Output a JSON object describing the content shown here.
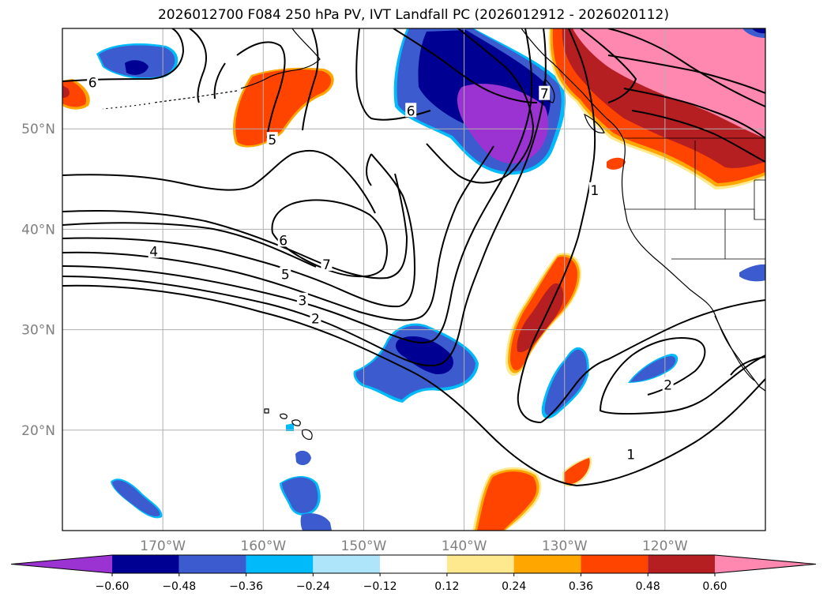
{
  "title": "2026012700 F084 250 hPa PV, IVT Landfall PC (2026012912 - 2026020112)",
  "map": {
    "projection": "PlateCarree",
    "extent": {
      "lon_min": -180,
      "lon_max": -110,
      "lat_min": 10,
      "lat_max": 60
    },
    "gridlines": true,
    "lon_ticks": [
      {
        "lon": -170,
        "label": "170°W"
      },
      {
        "lon": -160,
        "label": "160°W"
      },
      {
        "lon": -150,
        "label": "150°W"
      },
      {
        "lon": -140,
        "label": "140°W"
      },
      {
        "lon": -130,
        "label": "130°W"
      },
      {
        "lon": -120,
        "label": "120°W"
      }
    ],
    "lat_ticks": [
      {
        "lat": 20,
        "label": "20°N"
      },
      {
        "lat": 30,
        "label": "30°N"
      },
      {
        "lat": 40,
        "label": "40°N"
      },
      {
        "lat": 50,
        "label": "50°N"
      }
    ],
    "contour_labels": [
      {
        "text": "6",
        "lon": -177.0,
        "lat": 54.6
      },
      {
        "text": "5",
        "lon": -159.1,
        "lat": 48.9
      },
      {
        "text": "6",
        "lon": -145.3,
        "lat": 51.8
      },
      {
        "text": "7",
        "lon": -132.0,
        "lat": 53.5
      },
      {
        "text": "6",
        "lon": -158.0,
        "lat": 38.9
      },
      {
        "text": "7",
        "lon": -153.7,
        "lat": 36.5
      },
      {
        "text": "5",
        "lon": -157.8,
        "lat": 35.5
      },
      {
        "text": "4",
        "lon": -170.9,
        "lat": 37.8
      },
      {
        "text": "3",
        "lon": -156.1,
        "lat": 32.9
      },
      {
        "text": "2",
        "lon": -154.8,
        "lat": 31.1
      },
      {
        "text": "1",
        "lon": -127.0,
        "lat": 43.9
      },
      {
        "text": "2",
        "lon": -119.7,
        "lat": 24.5
      },
      {
        "text": "1",
        "lon": -123.4,
        "lat": 17.6
      }
    ]
  },
  "colorbar": {
    "colors": [
      "#9a33d1",
      "#000093",
      "#3b5bce",
      "#00baf9",
      "#afe5fb",
      "#ffffff",
      "#ffe98e",
      "#ffa600",
      "#ff4400",
      "#b51f22",
      "#ff88b0"
    ],
    "tick_labels": [
      "−0.60",
      "−0.48",
      "−0.36",
      "−0.24",
      "−0.12",
      "0.12",
      "0.24",
      "0.36",
      "0.48",
      "0.60"
    ]
  }
}
